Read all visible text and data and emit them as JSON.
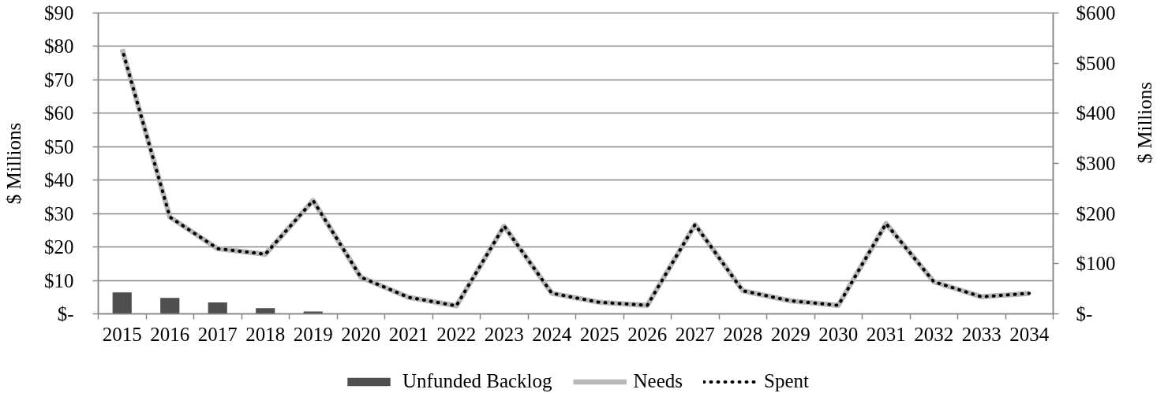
{
  "chart_data": {
    "type": "bar",
    "categories": [
      "2015",
      "2016",
      "2017",
      "2018",
      "2019",
      "2020",
      "2021",
      "2022",
      "2023",
      "2024",
      "2025",
      "2026",
      "2027",
      "2028",
      "2029",
      "2030",
      "2031",
      "2032",
      "2033",
      "2034"
    ],
    "series": [
      {
        "name": "Unfunded Backlog",
        "color": "#4f4f4f",
        "values": [
          6.4,
          4.8,
          3.4,
          1.7,
          0.7,
          null,
          null,
          null,
          null,
          null,
          null,
          null,
          null,
          null,
          null,
          null,
          null,
          null,
          null,
          null
        ]
      },
      {
        "name": "Needs",
        "type": "line",
        "axis": "y2",
        "color": "#b8b8b8",
        "line_style": "solid",
        "values": [
          528,
          193,
          130,
          119,
          226,
          73,
          33,
          16,
          175,
          41,
          23,
          17,
          178,
          46,
          26,
          17,
          180,
          64,
          34,
          41
        ]
      },
      {
        "name": "Spent",
        "type": "line",
        "axis": "y2",
        "color": "#000000",
        "line_style": "dotted",
        "values": [
          528,
          193,
          130,
          119,
          226,
          73,
          33,
          16,
          175,
          41,
          23,
          17,
          178,
          46,
          26,
          17,
          180,
          64,
          34,
          41
        ]
      }
    ],
    "ylabel": "$ Millions",
    "y2label": "$ Millions",
    "ylim": [
      0,
      90
    ],
    "yticks": [
      {
        "value": 0,
        "label": "$-"
      },
      {
        "value": 10,
        "label": "$10"
      },
      {
        "value": 20,
        "label": "$20"
      },
      {
        "value": 30,
        "label": "$30"
      },
      {
        "value": 40,
        "label": "$40"
      },
      {
        "value": 50,
        "label": "$50"
      },
      {
        "value": 60,
        "label": "$60"
      },
      {
        "value": 70,
        "label": "$70"
      },
      {
        "value": 80,
        "label": "$80"
      },
      {
        "value": 90,
        "label": "$90"
      }
    ],
    "y2lim": [
      0,
      600
    ],
    "y2ticks": [
      {
        "value": 0,
        "label": "$-"
      },
      {
        "value": 100,
        "label": "$100"
      },
      {
        "value": 200,
        "label": "$200"
      },
      {
        "value": 300,
        "label": "$300"
      },
      {
        "value": 400,
        "label": "$400"
      },
      {
        "value": 500,
        "label": "$500"
      },
      {
        "value": 600,
        "label": "$600"
      }
    ],
    "grid": "y",
    "legend": "bottom"
  }
}
